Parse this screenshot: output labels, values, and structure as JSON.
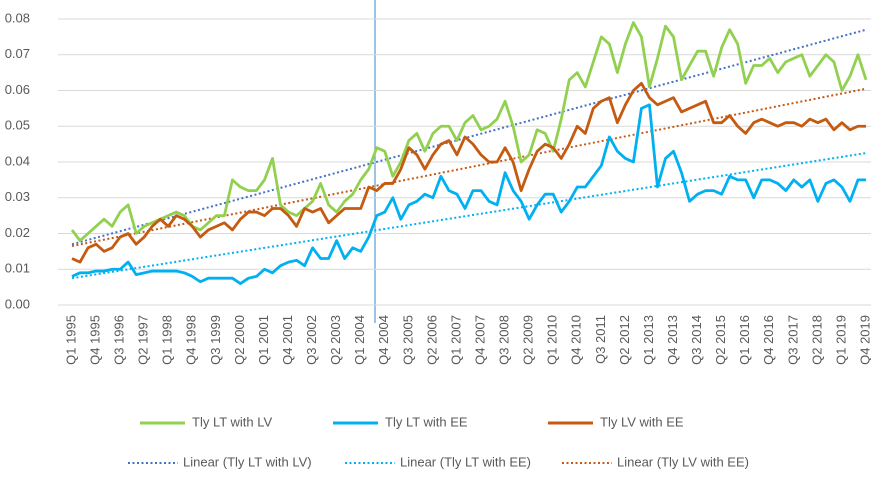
{
  "chart_data": {
    "type": "line",
    "categories": [
      "Q1 1995",
      null,
      null,
      "Q4 1995",
      null,
      null,
      "Q3 1996",
      null,
      null,
      "Q2 1997",
      null,
      null,
      "Q1 1998",
      null,
      null,
      "Q4 1998",
      null,
      null,
      "Q3 1999",
      null,
      null,
      "Q2 2000",
      null,
      null,
      "Q1 2001",
      null,
      null,
      "Q4 2001",
      null,
      null,
      "Q3 2002",
      null,
      null,
      "Q2 2003",
      null,
      null,
      "Q1 2004",
      null,
      null,
      "Q4 2004",
      null,
      null,
      "Q3 2005",
      null,
      null,
      "Q2 2006",
      null,
      null,
      "Q1 2007",
      null,
      null,
      "Q4 2007",
      null,
      null,
      "Q3 2008",
      null,
      null,
      "Q2 2009",
      null,
      null,
      "Q1 2010",
      null,
      null,
      "Q4 2010",
      null,
      null,
      "Q3 2011",
      null,
      null,
      "Q2 2012",
      null,
      null,
      "Q1 2013",
      null,
      null,
      "Q4 2013",
      null,
      null,
      "Q3 2014",
      null,
      null,
      "Q2 2015",
      null,
      null,
      "Q1 2016",
      null,
      null,
      "Q4 2016",
      null,
      null,
      "Q3 2017",
      null,
      null,
      "Q2 2018",
      null,
      null,
      "Q1 2019",
      null,
      null,
      "Q4 2019"
    ],
    "series": [
      {
        "name": "Tly LT with LV",
        "color": "#92d050",
        "values": [
          0.021,
          0.018,
          0.02,
          0.022,
          0.024,
          0.022,
          0.026,
          0.028,
          0.02,
          0.022,
          0.023,
          0.024,
          0.025,
          0.026,
          0.025,
          0.022,
          0.021,
          0.023,
          0.025,
          0.025,
          0.035,
          0.033,
          0.032,
          0.032,
          0.035,
          0.041,
          0.028,
          0.026,
          0.025,
          0.027,
          0.029,
          0.034,
          0.028,
          0.026,
          0.029,
          0.031,
          0.035,
          0.038,
          0.044,
          0.043,
          0.036,
          0.04,
          0.046,
          0.048,
          0.043,
          0.048,
          0.05,
          0.05,
          0.046,
          0.051,
          0.053,
          0.049,
          0.05,
          0.052,
          0.057,
          0.05,
          0.04,
          0.042,
          0.049,
          0.048,
          0.043,
          0.052,
          0.063,
          0.065,
          0.061,
          0.068,
          0.075,
          0.073,
          0.065,
          0.073,
          0.079,
          0.075,
          0.061,
          0.069,
          0.078,
          0.075,
          0.063,
          0.067,
          0.071,
          0.071,
          0.064,
          0.072,
          0.077,
          0.073,
          0.062,
          0.067,
          0.067,
          0.069,
          0.065,
          0.068,
          0.069,
          0.07,
          0.064,
          0.067,
          0.07,
          0.068,
          0.06,
          0.064,
          0.07,
          0.063
        ]
      },
      {
        "name": "Tly LT with EE",
        "color": "#00b0f0",
        "values": [
          0.008,
          0.009,
          0.009,
          0.0095,
          0.0095,
          0.01,
          0.01,
          0.012,
          0.0085,
          0.009,
          0.0095,
          0.0095,
          0.0095,
          0.0095,
          0.009,
          0.008,
          0.0065,
          0.0075,
          0.0075,
          0.0075,
          0.0075,
          0.006,
          0.0075,
          0.008,
          0.01,
          0.009,
          0.011,
          0.012,
          0.0125,
          0.011,
          0.016,
          0.013,
          0.013,
          0.018,
          0.013,
          0.016,
          0.015,
          0.019,
          0.025,
          0.026,
          0.03,
          0.024,
          0.028,
          0.029,
          0.031,
          0.03,
          0.036,
          0.032,
          0.031,
          0.027,
          0.032,
          0.032,
          0.029,
          0.028,
          0.037,
          0.032,
          0.029,
          0.024,
          0.028,
          0.031,
          0.031,
          0.026,
          0.029,
          0.033,
          0.033,
          0.036,
          0.039,
          0.047,
          0.043,
          0.041,
          0.04,
          0.055,
          0.056,
          0.033,
          0.041,
          0.043,
          0.037,
          0.029,
          0.031,
          0.032,
          0.032,
          0.031,
          0.036,
          0.035,
          0.035,
          0.03,
          0.035,
          0.035,
          0.034,
          0.032,
          0.035,
          0.033,
          0.035,
          0.029,
          0.034,
          0.035,
          0.033,
          0.029,
          0.035,
          0.035
        ]
      },
      {
        "name": "Tly LV with EE",
        "color": "#c55a11",
        "values": [
          0.013,
          0.012,
          0.016,
          0.017,
          0.015,
          0.016,
          0.019,
          0.02,
          0.017,
          0.019,
          0.022,
          0.024,
          0.022,
          0.025,
          0.024,
          0.022,
          0.019,
          0.021,
          0.022,
          0.023,
          0.021,
          0.024,
          0.026,
          0.026,
          0.025,
          0.027,
          0.027,
          0.025,
          0.022,
          0.027,
          0.026,
          0.027,
          0.023,
          0.025,
          0.027,
          0.027,
          0.027,
          0.033,
          0.032,
          0.034,
          0.034,
          0.038,
          0.044,
          0.042,
          0.038,
          0.042,
          0.045,
          0.046,
          0.042,
          0.047,
          0.045,
          0.042,
          0.04,
          0.04,
          0.044,
          0.04,
          0.032,
          0.038,
          0.043,
          0.045,
          0.044,
          0.041,
          0.045,
          0.05,
          0.048,
          0.055,
          0.057,
          0.058,
          0.051,
          0.056,
          0.06,
          0.062,
          0.058,
          0.056,
          0.057,
          0.058,
          0.054,
          0.055,
          0.056,
          0.057,
          0.051,
          0.051,
          0.053,
          0.05,
          0.048,
          0.051,
          0.052,
          0.051,
          0.05,
          0.051,
          0.051,
          0.05,
          0.052,
          0.051,
          0.052,
          0.049,
          0.051,
          0.049,
          0.05,
          0.05
        ]
      }
    ],
    "trendlines": [
      {
        "name": "Linear (Tly LT with LV)",
        "color": "#4472c4",
        "values": [
          0.017,
          0.077
        ]
      },
      {
        "name": "Linear (Tly LT with EE)",
        "color": "#00b0f0",
        "values": [
          0.0075,
          0.0425
        ]
      },
      {
        "name": "Linear (Tly LV with EE)",
        "color": "#c55a11",
        "values": [
          0.0165,
          0.0605
        ]
      }
    ],
    "ylim": [
      0,
      0.08
    ],
    "yticks": [
      {
        "value": 0,
        "label": "0.00"
      },
      0.01,
      0.02,
      0.03,
      0.04,
      0.05,
      0.06,
      0.07,
      0.08
    ],
    "grid": true
  }
}
